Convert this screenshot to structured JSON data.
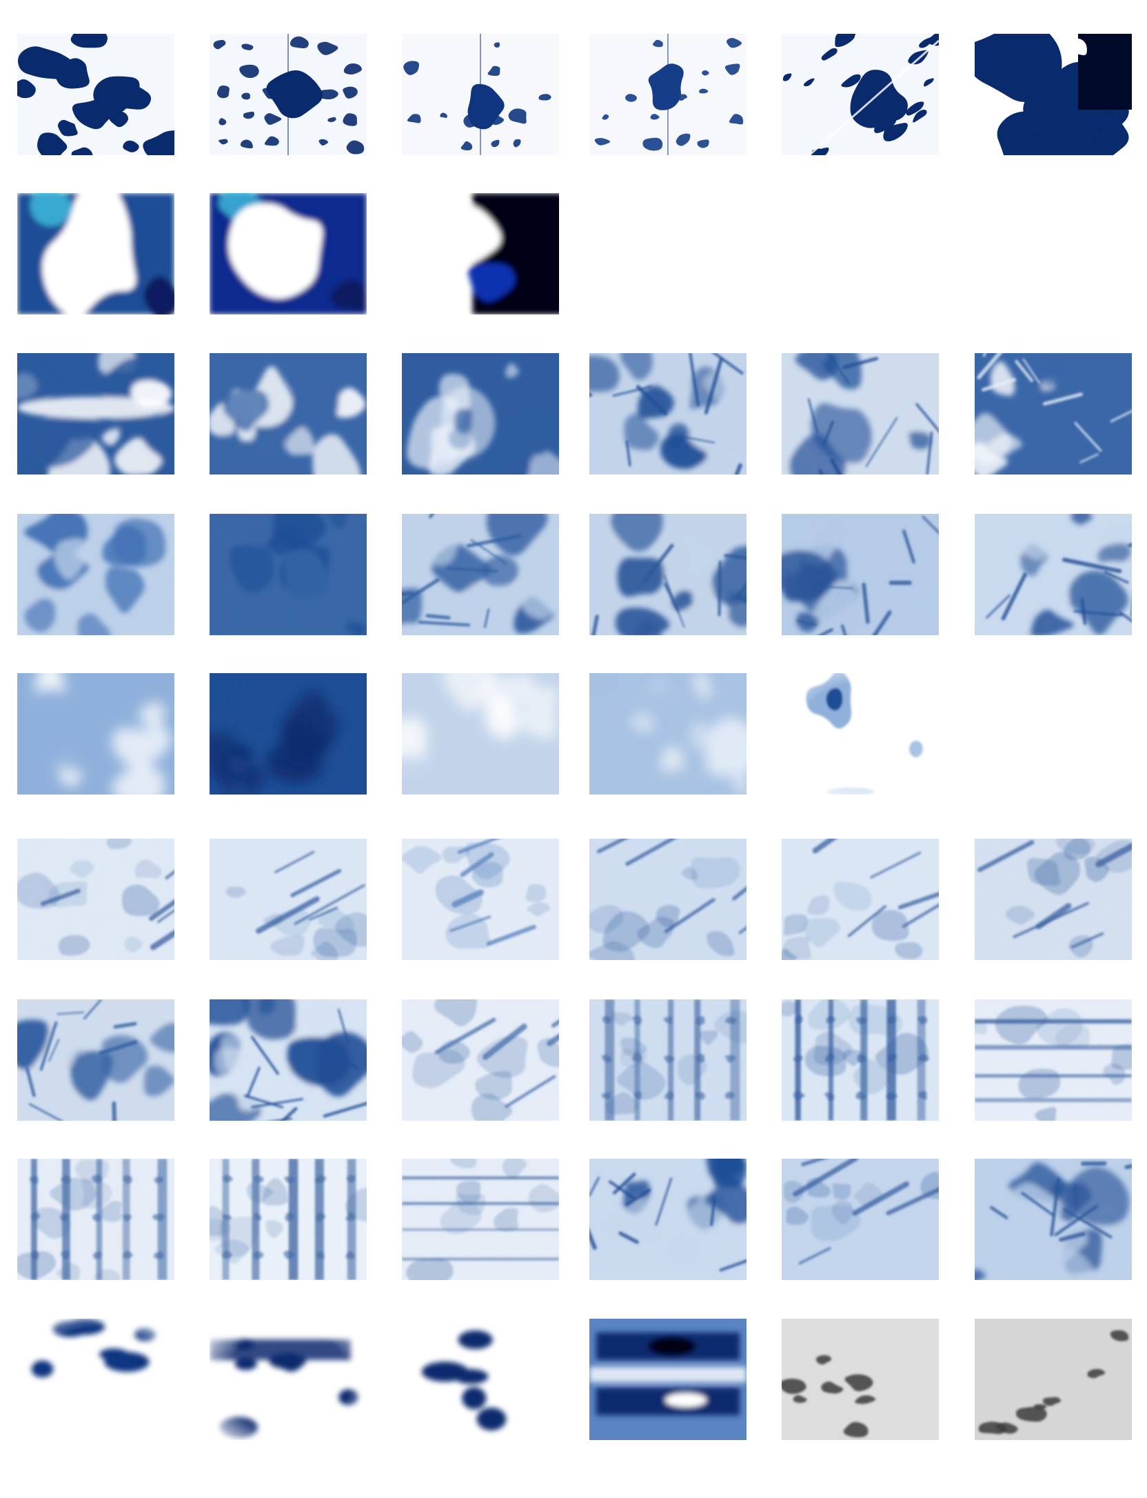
{
  "sheet": {
    "description_free": true,
    "background": "#ffffff"
  },
  "palette": {
    "indigo_dark": "#0a2a6e",
    "indigo": "#1f4e96",
    "indigo_mid": "#3f6fb4",
    "indigo_light": "#8fb0db",
    "indigo_pale": "#d6e3f3",
    "paper": "#f4f7fc",
    "white": "#ffffff",
    "black": "#020612",
    "cyan_accent": "#3fc0e0",
    "gray_light": "#e2e2e2",
    "gray_dark": "#2a2a2a"
  },
  "rows": [
    {
      "id": "row-1",
      "tiles": [
        {
          "style": "shibori-blotch",
          "seed": 3,
          "base": "#f4f7fc",
          "ink": "#0a2a6e",
          "coverage": 0.55
        },
        {
          "style": "shibori-grid",
          "seed": 7,
          "base": "#f4f7fc",
          "ink": "#0a2a6e",
          "coverage": 0.45
        },
        {
          "style": "shibori-grid",
          "seed": 11,
          "base": "#f6f8fc",
          "ink": "#0f3580",
          "coverage": 0.3
        },
        {
          "style": "shibori-grid",
          "seed": 13,
          "base": "#f6f8fc",
          "ink": "#163d88",
          "coverage": 0.25
        },
        {
          "style": "shibori-diagonal",
          "seed": 17,
          "base": "#f4f7fc",
          "ink": "#0a2a6e",
          "coverage": 0.45
        },
        {
          "style": "shibori-blotch-dark",
          "seed": 19,
          "base": "#ffffff",
          "ink": "#0a2a6e",
          "coverage": 0.7
        }
      ]
    },
    {
      "id": "row-2",
      "tiles": [
        {
          "style": "liquid",
          "seed": 23,
          "base": "#ffffff",
          "ink": "#1f4e96",
          "accent": "#3fc0e0",
          "coverage": 0.5
        },
        {
          "style": "liquid",
          "seed": 29,
          "base": "#ffffff",
          "ink": "#0a2a8e",
          "accent": "#3fc0e0",
          "coverage": 0.35
        },
        {
          "style": "liquid-dark",
          "seed": 31,
          "base": "#ffffff",
          "ink": "#020612",
          "accent": "#1030b0",
          "coverage": 0.55
        }
      ]
    },
    {
      "id": "row-3",
      "tiles": [
        {
          "style": "cloud-band",
          "seed": 37,
          "base": "#2c5a9e",
          "ink": "#ffffff",
          "coverage": 0.35
        },
        {
          "style": "cloud",
          "seed": 41,
          "base": "#3a67a8",
          "ink": "#ffffff",
          "coverage": 0.3
        },
        {
          "style": "cloud",
          "seed": 43,
          "base": "#2f5da0",
          "ink": "#eaf1fa",
          "coverage": 0.3
        },
        {
          "style": "burst",
          "seed": 47,
          "base": "#c3d4ea",
          "ink": "#1f4e96",
          "coverage": 0.4
        },
        {
          "style": "burst",
          "seed": 53,
          "base": "#cfdcee",
          "ink": "#1f4e96",
          "coverage": 0.4
        },
        {
          "style": "burst-dark",
          "seed": 59,
          "base": "#3a67a8",
          "ink": "#f4f7fc",
          "coverage": 0.45
        }
      ]
    },
    {
      "id": "row-4",
      "tiles": [
        {
          "style": "cloud",
          "seed": 61,
          "base": "#bcd0ea",
          "ink": "#3f6fb4",
          "coverage": 0.35
        },
        {
          "style": "cloud",
          "seed": 67,
          "base": "#3a67a8",
          "ink": "#1f4e96",
          "coverage": 0.4
        },
        {
          "style": "vein",
          "seed": 71,
          "base": "#bfd2ea",
          "ink": "#2f5da0",
          "coverage": 0.35
        },
        {
          "style": "burst",
          "seed": 73,
          "base": "#c3d4ea",
          "ink": "#2a5699",
          "coverage": 0.4
        },
        {
          "style": "burst",
          "seed": 79,
          "base": "#b5cbe7",
          "ink": "#2a5699",
          "coverage": 0.4
        },
        {
          "style": "burst",
          "seed": 83,
          "base": "#c9d9ee",
          "ink": "#1f4e96",
          "coverage": 0.4
        }
      ]
    },
    {
      "id": "row-5",
      "tiles": [
        {
          "style": "smooth",
          "seed": 89,
          "base": "#8fb0db",
          "ink": "#ffffff",
          "coverage": 0.4
        },
        {
          "style": "smooth-dark",
          "seed": 97,
          "base": "#1f4e96",
          "ink": "#0a2a6e",
          "coverage": 0.5
        },
        {
          "style": "smooth",
          "seed": 101,
          "base": "#c3d4ea",
          "ink": "#ffffff",
          "coverage": 0.45
        },
        {
          "style": "smooth",
          "seed": 103,
          "base": "#a8c2e3",
          "ink": "#e6eef8",
          "coverage": 0.45
        },
        {
          "style": "smooth-sparse",
          "seed": 107,
          "base": "#ffffff",
          "ink": "#6a8fc8",
          "coverage": 0.15
        }
      ]
    },
    {
      "id": "row-6",
      "tiles": [
        {
          "style": "linen-streak",
          "seed": 109,
          "base": "#dbe6f4",
          "ink": "#1f4e96",
          "coverage": 0.2
        },
        {
          "style": "linen-streak",
          "seed": 113,
          "base": "#d6e3f3",
          "ink": "#1f4e96",
          "coverage": 0.25
        },
        {
          "style": "linen-streak",
          "seed": 127,
          "base": "#dfe8f5",
          "ink": "#3f6fb4",
          "coverage": 0.2
        },
        {
          "style": "linen-streak",
          "seed": 131,
          "base": "#c9d9ee",
          "ink": "#1f4e96",
          "coverage": 0.3
        },
        {
          "style": "linen-streak",
          "seed": 137,
          "base": "#d6e3f3",
          "ink": "#1f4e96",
          "coverage": 0.3
        },
        {
          "style": "linen-streak",
          "seed": 139,
          "base": "#cfdcee",
          "ink": "#1f4e96",
          "coverage": 0.3
        }
      ]
    },
    {
      "id": "row-7",
      "tiles": [
        {
          "style": "vein",
          "seed": 149,
          "base": "#cfdcee",
          "ink": "#2f5da0",
          "coverage": 0.4
        },
        {
          "style": "vein",
          "seed": 151,
          "base": "#d6e3f3",
          "ink": "#1f4e96",
          "coverage": 0.35
        },
        {
          "style": "linen-streak",
          "seed": 157,
          "base": "#e2eaf6",
          "ink": "#2f5da0",
          "coverage": 0.25
        },
        {
          "style": "linen-vertical",
          "seed": 163,
          "base": "#c9d9ee",
          "ink": "#2a5699",
          "coverage": 0.3
        },
        {
          "style": "linen-vertical",
          "seed": 167,
          "base": "#d6e3f3",
          "ink": "#1f4e96",
          "coverage": 0.35
        },
        {
          "style": "linen-horizontal",
          "seed": 173,
          "base": "#e2eaf6",
          "ink": "#1f4e96",
          "coverage": 0.15
        }
      ]
    },
    {
      "id": "row-8",
      "tiles": [
        {
          "style": "linen-vertical",
          "seed": 179,
          "base": "#e2eaf6",
          "ink": "#2a5699",
          "coverage": 0.3
        },
        {
          "style": "linen-vertical",
          "seed": 181,
          "base": "#e6eef8",
          "ink": "#2a5699",
          "coverage": 0.3
        },
        {
          "style": "linen-horizontal",
          "seed": 191,
          "base": "#e2eaf6",
          "ink": "#2a5699",
          "coverage": 0.25
        },
        {
          "style": "vein",
          "seed": 193,
          "base": "#c9d9ee",
          "ink": "#1f4e96",
          "coverage": 0.35
        },
        {
          "style": "linen-streak",
          "seed": 197,
          "base": "#bcd0ea",
          "ink": "#1f4e96",
          "coverage": 0.3
        },
        {
          "style": "vein",
          "seed": 199,
          "base": "#bcd0ea",
          "ink": "#2a5699",
          "coverage": 0.35
        }
      ]
    },
    {
      "id": "row-9",
      "tiles": [
        {
          "style": "dots-soft",
          "seed": 211,
          "base": "#ffffff",
          "ink": "#0f3580",
          "coverage": 0.2
        },
        {
          "style": "dots-soft-band",
          "seed": 223,
          "base": "#ffffff",
          "ink": "#0a2a6e",
          "coverage": 0.3
        },
        {
          "style": "dots-soft",
          "seed": 227,
          "base": "#ffffff",
          "ink": "#0a2a6e",
          "coverage": 0.2
        },
        {
          "style": "bands-dark",
          "seed": 229,
          "base": "#5a84c2",
          "ink": "#020612",
          "coverage": 0.55
        },
        {
          "style": "gray-dots",
          "seed": 233,
          "base": "#e2e2e2",
          "ink": "#2a2a2a",
          "coverage": 0.15
        },
        {
          "style": "gray-dots",
          "seed": 239,
          "base": "#dadada",
          "ink": "#2a2a2a",
          "coverage": 0.2
        }
      ]
    }
  ]
}
